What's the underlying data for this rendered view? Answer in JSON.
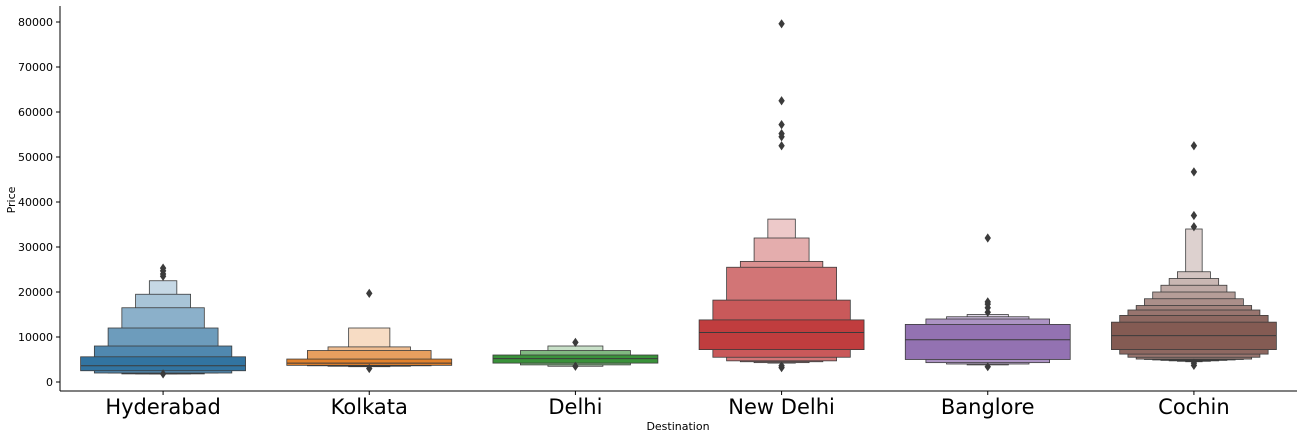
{
  "chart_data": {
    "type": "boxen",
    "xlabel": "Destination",
    "ylabel": "Price",
    "ylim": [
      -2000,
      84000
    ],
    "yticks": [
      0,
      10000,
      20000,
      30000,
      40000,
      50000,
      60000,
      70000,
      80000
    ],
    "grid": false,
    "categories": [
      "Hyderabad",
      "Kolkata",
      "Delhi",
      "New Delhi",
      "Banglore",
      "Cochin"
    ],
    "series": [
      {
        "category": "Hyderabad",
        "color": "#3274a1",
        "median": 3600,
        "boxes": [
          [
            2500,
            5600
          ],
          [
            2000,
            8000
          ],
          [
            2000,
            12000
          ],
          [
            1800,
            16500
          ],
          [
            1800,
            19500
          ],
          [
            1800,
            22500
          ]
        ],
        "outliers": [
          1800,
          23500,
          24000,
          24700,
          25300
        ]
      },
      {
        "category": "Kolkata",
        "color": "#e1812c",
        "median": 4200,
        "boxes": [
          [
            3700,
            5100
          ],
          [
            3600,
            7000
          ],
          [
            3500,
            7800
          ],
          [
            3400,
            12000
          ]
        ],
        "outliers": [
          3000,
          19700
        ]
      },
      {
        "category": "Delhi",
        "color": "#3a923a",
        "median": 5200,
        "boxes": [
          [
            4200,
            6000
          ],
          [
            3800,
            7000
          ],
          [
            3500,
            8000
          ]
        ],
        "outliers": [
          3500,
          8800
        ]
      },
      {
        "category": "New Delhi",
        "color": "#c03d3e",
        "median": 11000,
        "boxes": [
          [
            7200,
            13800
          ],
          [
            5500,
            18200
          ],
          [
            4700,
            25500
          ],
          [
            4500,
            26800
          ],
          [
            4300,
            32000
          ],
          [
            4200,
            36200
          ]
        ],
        "outliers": [
          3200,
          3600,
          52500,
          54500,
          55200,
          57200,
          62500,
          79600
        ]
      },
      {
        "category": "Banglore",
        "color": "#9372b2",
        "median": 9400,
        "boxes": [
          [
            5000,
            12800
          ],
          [
            4300,
            14000
          ],
          [
            4000,
            14500
          ],
          [
            3800,
            15000
          ]
        ],
        "outliers": [
          3400,
          15500,
          16500,
          17300,
          17800,
          32000
        ]
      },
      {
        "category": "Cochin",
        "color": "#845b53",
        "median": 10300,
        "boxes": [
          [
            7200,
            13300
          ],
          [
            6200,
            14800
          ],
          [
            5500,
            16000
          ],
          [
            5100,
            17000
          ],
          [
            5000,
            18500
          ],
          [
            4900,
            20000
          ],
          [
            4800,
            21500
          ],
          [
            4700,
            23000
          ],
          [
            4600,
            24500
          ],
          [
            4500,
            34000
          ]
        ],
        "outliers": [
          3700,
          4200,
          34500,
          37000,
          46700,
          52500
        ]
      }
    ]
  }
}
